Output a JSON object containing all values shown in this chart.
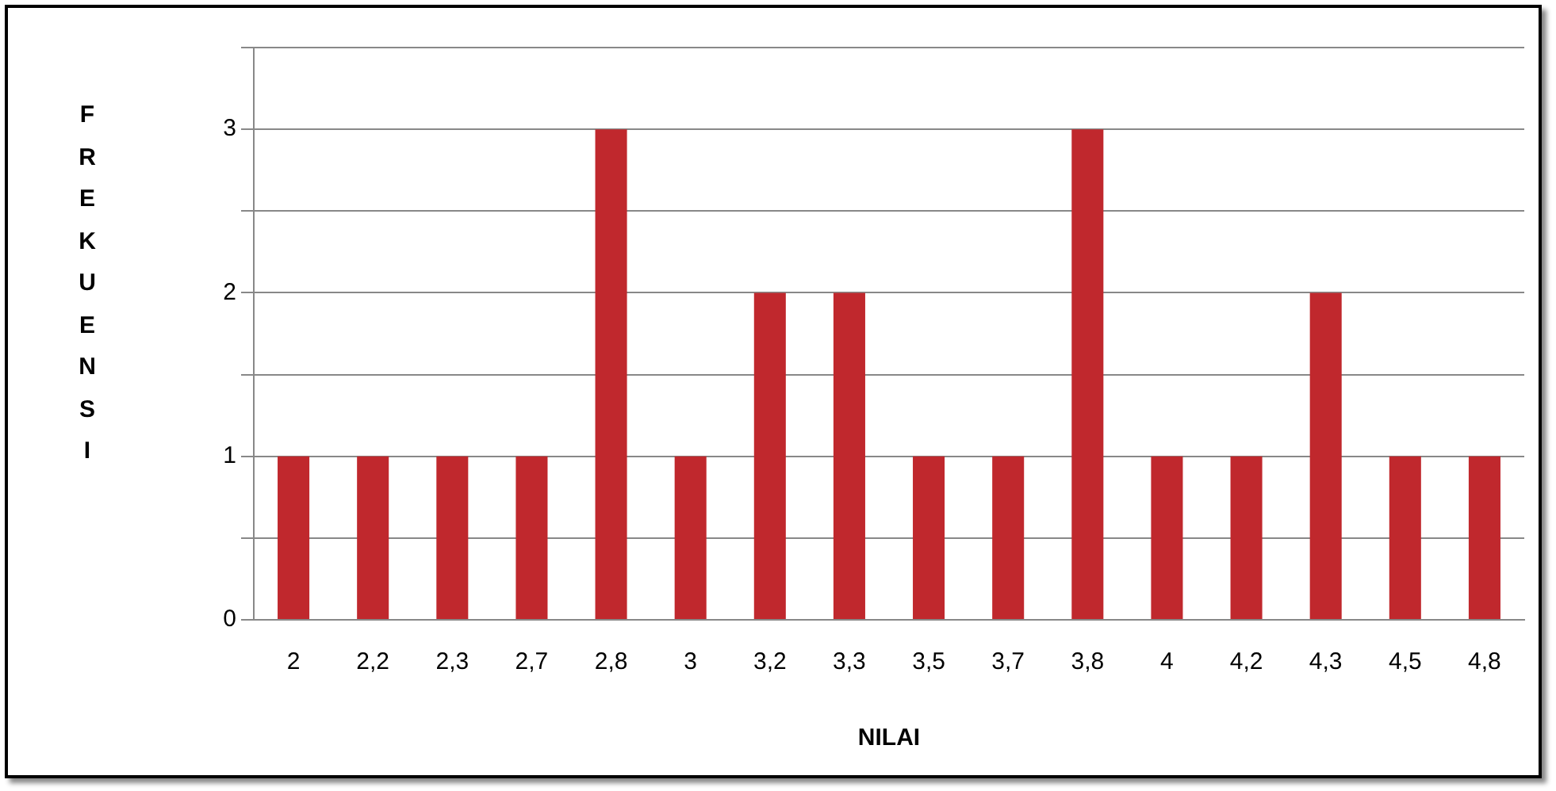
{
  "chart_data": {
    "type": "bar",
    "xlabel": "NILAI",
    "ylabel": "FREKUENSI",
    "categories": [
      "2",
      "2,2",
      "2,3",
      "2,7",
      "2,8",
      "3",
      "3,2",
      "3,3",
      "3,5",
      "3,7",
      "3,8",
      "4",
      "4,2",
      "4,3",
      "4,5",
      "4,8"
    ],
    "values": [
      1,
      1,
      1,
      1,
      3,
      1,
      2,
      2,
      1,
      1,
      3,
      1,
      1,
      2,
      1,
      1
    ],
    "color": "#c0282d",
    "ylim": [
      0,
      3.5
    ],
    "yticks": [
      0,
      {
        "value": 0.5,
        "label": null
      },
      1,
      {
        "value": 1.5,
        "label": null
      },
      2,
      {
        "value": 2.5,
        "label": null
      },
      3,
      {
        "value": 3.5,
        "label": null
      }
    ],
    "grid": "y",
    "legend": false
  }
}
